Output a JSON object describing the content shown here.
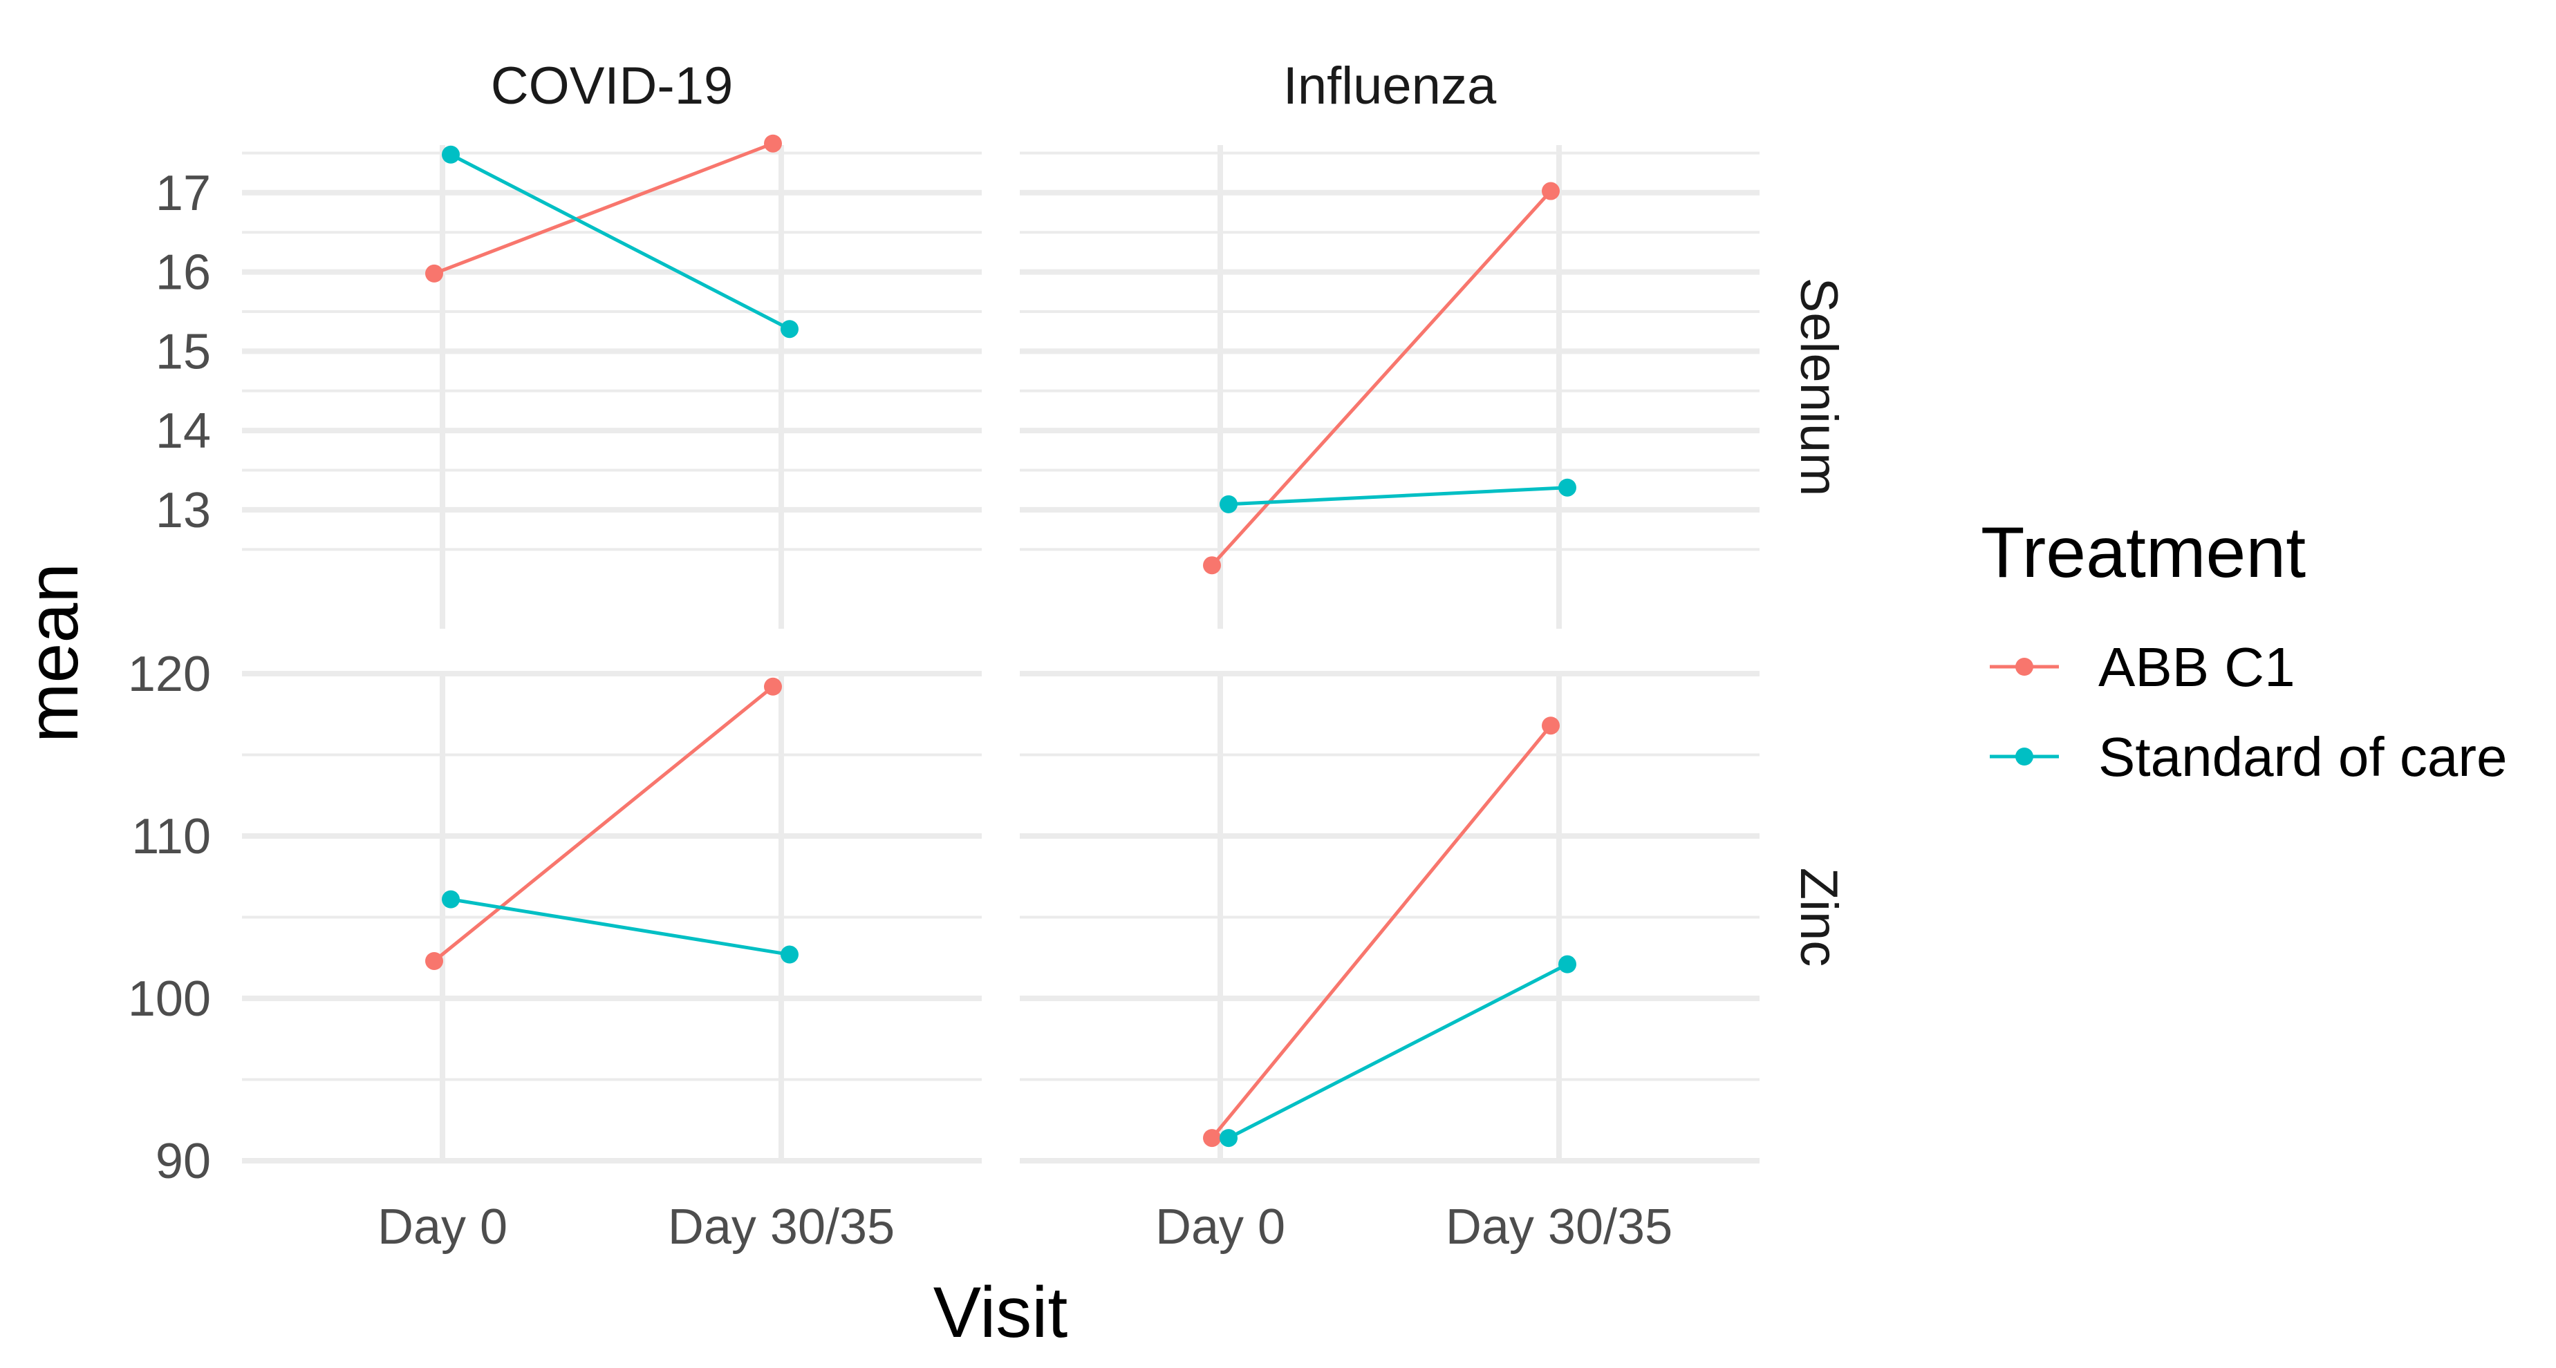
{
  "chart_data": {
    "type": "line",
    "x_title": "Visit",
    "y_title": "mean",
    "x_categories": [
      "Day 0",
      "Day 30/35"
    ],
    "column_facets": [
      "COVID-19",
      "Influenza"
    ],
    "row_facets": [
      "Selenium",
      "Zinc"
    ],
    "legend": {
      "title": "Treatment",
      "placement": "right",
      "entries": [
        {
          "name": "ABB C1",
          "color": "#F8766D"
        },
        {
          "name": "Standard of care",
          "color": "#00BFC4"
        }
      ]
    },
    "rows": [
      {
        "name": "Selenium",
        "ylim": [
          11.5,
          17.6
        ],
        "y_ticks": [
          13,
          14,
          15,
          16,
          17
        ],
        "y_tick_labels": [
          "13",
          "14",
          "15",
          "16",
          "17"
        ],
        "panels": [
          {
            "facet": "COVID-19",
            "series": [
              {
                "name": "ABB C1",
                "values": [
                  15.98,
                  17.62
                ]
              },
              {
                "name": "Standard of care",
                "values": [
                  17.48,
                  15.28
                ]
              }
            ]
          },
          {
            "facet": "Influenza",
            "series": [
              {
                "name": "ABB C1",
                "values": [
                  12.3,
                  17.02
                ]
              },
              {
                "name": "Standard of care",
                "values": [
                  13.07,
                  13.28
                ]
              }
            ]
          }
        ]
      },
      {
        "name": "Zinc",
        "ylim": [
          90,
          120
        ],
        "y_ticks": [
          90,
          100,
          110,
          120
        ],
        "y_tick_labels": [
          "90",
          "100",
          "110",
          "120"
        ],
        "panels": [
          {
            "facet": "COVID-19",
            "series": [
              {
                "name": "ABB C1",
                "values": [
                  102.3,
                  119.2
                ]
              },
              {
                "name": "Standard of care",
                "values": [
                  106.1,
                  102.7
                ]
              }
            ]
          },
          {
            "facet": "Influenza",
            "series": [
              {
                "name": "ABB C1",
                "values": [
                  91.4,
                  116.8
                ]
              },
              {
                "name": "Standard of care",
                "values": [
                  91.4,
                  102.1
                ]
              }
            ]
          }
        ]
      }
    ]
  }
}
